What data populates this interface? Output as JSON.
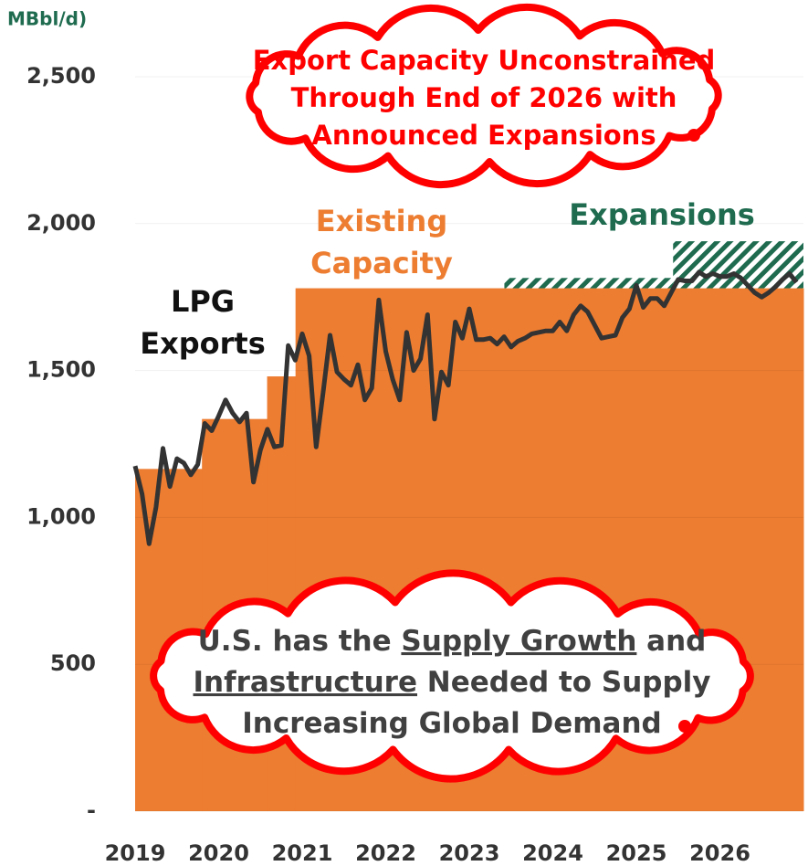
{
  "chart_data": {
    "type": "line",
    "ylabel": "MBbl/d)",
    "ylim": [
      0,
      2500
    ],
    "yticks": [
      {
        "value": 0,
        "label": "-"
      },
      500,
      {
        "value": 1000,
        "label": "1,000"
      },
      {
        "value": 1500,
        "label": "1,500"
      },
      {
        "value": 2000,
        "label": "2,000"
      },
      {
        "value": 2500,
        "label": "2,500"
      }
    ],
    "xlim": [
      2019,
      2027
    ],
    "xticks": [
      2019,
      2020,
      2021,
      2022,
      2023,
      2024,
      2025,
      2026
    ],
    "grid": true,
    "capacity": {
      "label": [
        "Existing",
        "Capacity"
      ],
      "color": "#ed7d31",
      "x": [
        2019,
        2019.8,
        2020.58,
        2020.92
      ],
      "values": [
        1165,
        1335,
        1480,
        1780
      ]
    },
    "expansions": {
      "label": "Expansions",
      "color": "#1e6b4f",
      "x": [
        2023.42,
        2025.44
      ],
      "values": [
        35,
        160
      ]
    },
    "series": [
      {
        "label": [
          "LPG",
          "Exports"
        ],
        "color": "#333333",
        "values": [
          1175,
          1080,
          910,
          1035,
          1235,
          1105,
          1200,
          1185,
          1145,
          1180,
          1320,
          1295,
          1345,
          1400,
          1355,
          1325,
          1355,
          1120,
          1230,
          1300,
          1240,
          1245,
          1585,
          1535,
          1625,
          1550,
          1240,
          1425,
          1620,
          1495,
          1470,
          1450,
          1520,
          1400,
          1440,
          1740,
          1565,
          1470,
          1400,
          1630,
          1500,
          1540,
          1690,
          1335,
          1495,
          1450,
          1665,
          1610,
          1710,
          1605,
          1605,
          1610,
          1590,
          1615,
          1580,
          1600,
          1610,
          1625,
          1630,
          1635,
          1635,
          1665,
          1635,
          1690,
          1720,
          1700,
          1655,
          1610,
          1615,
          1620,
          1680,
          1710,
          1790,
          1715,
          1745,
          1745,
          1720,
          1765,
          1810,
          1805,
          1805,
          1835,
          1820,
          1830,
          1820,
          1820,
          1830,
          1815,
          1790,
          1765,
          1750,
          1765,
          1785,
          1810,
          1830,
          1800
        ]
      }
    ],
    "annotations": [
      {
        "color": "#ff0000",
        "lines": [
          [
            {
              "text": "Export Capacity Unconstrained"
            }
          ],
          [
            {
              "text": "Through End of 2026 with"
            }
          ],
          [
            {
              "text": "Announced Expansions"
            }
          ]
        ]
      },
      {
        "color": "#404040",
        "lines": [
          [
            {
              "text": "U.S. has the "
            },
            {
              "text": "Supply Growth",
              "underline": true
            },
            {
              "text": " and"
            }
          ],
          [
            {
              "text": "Infrastructure",
              "underline": true
            },
            {
              "text": " Needed to Supply"
            }
          ],
          [
            {
              "text": "Increasing Global Demand"
            }
          ]
        ]
      }
    ]
  }
}
